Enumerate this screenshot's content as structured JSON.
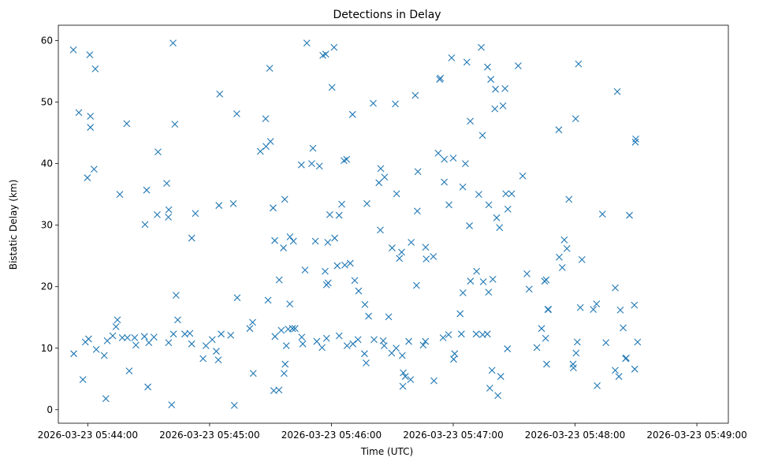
{
  "chart_data": {
    "type": "scatter",
    "title": "Detections in Delay",
    "xlabel": "Time (UTC)",
    "ylabel": "Bistatic Delay (km)",
    "marker": "x",
    "color": "#1f77b4",
    "x_unit": "seconds since 2026-03-23 05:43:00",
    "xlim": [
      45.5,
      375.5
    ],
    "ylim": [
      -2.2,
      62.5
    ],
    "xticks": [
      {
        "value": 60,
        "label": "2026-03-23 05:44:00"
      },
      {
        "value": 120,
        "label": "2026-03-23 05:45:00"
      },
      {
        "value": 180,
        "label": "2026-03-23 05:46:00"
      },
      {
        "value": 240,
        "label": "2026-03-23 05:47:00"
      },
      {
        "value": 300,
        "label": "2026-03-23 05:48:00"
      },
      {
        "value": 360,
        "label": "2026-03-23 05:49:00"
      }
    ],
    "yticks": [
      {
        "value": 0,
        "label": "0"
      },
      {
        "value": 10,
        "label": "10"
      },
      {
        "value": 20,
        "label": "20"
      },
      {
        "value": 30,
        "label": "30"
      },
      {
        "value": 40,
        "label": "40"
      },
      {
        "value": 50,
        "label": "50"
      },
      {
        "value": 60,
        "label": "60"
      }
    ],
    "series": [
      {
        "name": "Detections",
        "points": [
          [
            52.9,
            58.5
          ],
          [
            55.6,
            48.3
          ],
          [
            61.0,
            57.7
          ],
          [
            63.7,
            55.4
          ],
          [
            61.3,
            47.7
          ],
          [
            61.3,
            45.9
          ],
          [
            59.8,
            37.7
          ],
          [
            63.1,
            39.1
          ],
          [
            79.2,
            46.5
          ],
          [
            75.8,
            35.0
          ],
          [
            89.0,
            35.7
          ],
          [
            88.2,
            30.1
          ],
          [
            94.6,
            41.9
          ],
          [
            98.9,
            36.8
          ],
          [
            99.9,
            32.5
          ],
          [
            99.7,
            31.3
          ],
          [
            102.0,
            59.6
          ],
          [
            102.9,
            46.4
          ],
          [
            104.3,
            14.6
          ],
          [
            94.2,
            31.7
          ],
          [
            111.2,
            27.9
          ],
          [
            113.0,
            31.9
          ],
          [
            125.0,
            51.3
          ],
          [
            131.7,
            33.5
          ],
          [
            124.6,
            33.2
          ],
          [
            133.4,
            48.1
          ],
          [
            133.6,
            18.2
          ],
          [
            132.2,
            0.7
          ],
          [
            103.5,
            18.6
          ],
          [
            101.3,
            0.8
          ],
          [
            89.6,
            3.7
          ],
          [
            68.9,
            1.8
          ],
          [
            57.6,
            4.9
          ],
          [
            53.1,
            9.1
          ],
          [
            58.8,
            11.0
          ],
          [
            60.4,
            11.5
          ],
          [
            64.2,
            9.8
          ],
          [
            68.1,
            8.8
          ],
          [
            69.6,
            11.2
          ],
          [
            72.3,
            12.0
          ],
          [
            73.9,
            13.5
          ],
          [
            74.6,
            14.6
          ],
          [
            77.0,
            11.7
          ],
          [
            79.5,
            11.7
          ],
          [
            80.4,
            6.3
          ],
          [
            83.1,
            11.7
          ],
          [
            83.7,
            10.5
          ],
          [
            87.9,
            11.9
          ],
          [
            90.1,
            10.9
          ],
          [
            92.6,
            11.8
          ],
          [
            99.8,
            10.9
          ],
          [
            102.2,
            12.3
          ],
          [
            107.8,
            12.3
          ],
          [
            110.3,
            12.4
          ],
          [
            111.2,
            10.7
          ],
          [
            116.8,
            8.3
          ],
          [
            118.2,
            10.4
          ],
          [
            121.3,
            11.4
          ],
          [
            123.3,
            9.5
          ],
          [
            124.3,
            8.1
          ],
          [
            125.7,
            12.3
          ],
          [
            130.4,
            12.1
          ],
          [
            139.8,
            13.2
          ],
          [
            141.2,
            14.2
          ],
          [
            149.6,
            55.5
          ],
          [
            150.0,
            43.6
          ],
          [
            145.0,
            42.0
          ],
          [
            147.8,
            42.8
          ],
          [
            147.6,
            47.3
          ],
          [
            151.3,
            32.8
          ],
          [
            157.0,
            34.2
          ],
          [
            165.2,
            39.8
          ],
          [
            167.9,
            59.6
          ],
          [
            170.9,
            42.5
          ],
          [
            174.1,
            39.6
          ],
          [
            170.3,
            40.0
          ],
          [
            175.8,
            57.6
          ],
          [
            177.2,
            57.8
          ],
          [
            180.3,
            52.4
          ],
          [
            181.3,
            58.9
          ],
          [
            186.2,
            40.5
          ],
          [
            187.5,
            40.7
          ],
          [
            185.1,
            33.4
          ],
          [
            183.8,
            31.6
          ],
          [
            179.2,
            31.7
          ],
          [
            181.6,
            27.9
          ],
          [
            190.4,
            48.0
          ],
          [
            200.6,
            49.8
          ],
          [
            172.1,
            27.4
          ],
          [
            178.2,
            27.2
          ],
          [
            161.3,
            27.4
          ],
          [
            159.6,
            28.1
          ],
          [
            156.4,
            26.3
          ],
          [
            152.1,
            27.5
          ],
          [
            154.3,
            21.1
          ],
          [
            148.8,
            17.8
          ],
          [
            159.5,
            17.2
          ],
          [
            167.0,
            22.7
          ],
          [
            176.9,
            22.5
          ],
          [
            178.4,
            20.6
          ],
          [
            177.6,
            20.3
          ],
          [
            182.9,
            23.4
          ],
          [
            186.6,
            23.5
          ],
          [
            189.3,
            23.8
          ],
          [
            191.5,
            21.0
          ],
          [
            193.4,
            19.3
          ],
          [
            196.5,
            17.1
          ],
          [
            198.3,
            15.2
          ],
          [
            197.5,
            33.5
          ],
          [
            209.7,
            9.2
          ],
          [
            208.2,
            15.1
          ],
          [
            205.5,
            11.2
          ],
          [
            172.8,
            11.1
          ],
          [
            175.4,
            10.1
          ],
          [
            177.6,
            11.6
          ],
          [
            183.8,
            12.0
          ],
          [
            187.7,
            10.4
          ],
          [
            190.6,
            10.7
          ],
          [
            193.1,
            11.4
          ],
          [
            197.1,
            7.6
          ],
          [
            196.3,
            9.1
          ],
          [
            201.0,
            11.4
          ],
          [
            206.0,
            10.4
          ],
          [
            151.6,
            3.1
          ],
          [
            154.2,
            3.2
          ],
          [
            156.7,
            5.9
          ],
          [
            157.2,
            7.4
          ],
          [
            157.8,
            10.4
          ],
          [
            141.5,
            5.9
          ],
          [
            165.9,
            10.7
          ],
          [
            165.4,
            11.8
          ],
          [
            162.1,
            13.2
          ],
          [
            160.8,
            13.2
          ],
          [
            158.7,
            13.1
          ],
          [
            155.3,
            12.9
          ],
          [
            152.2,
            11.9
          ],
          [
            203.4,
            36.9
          ],
          [
            204.3,
            39.2
          ],
          [
            206.2,
            37.8
          ],
          [
            204.1,
            29.2
          ],
          [
            209.9,
            26.3
          ],
          [
            211.5,
            49.7
          ],
          [
            212.1,
            35.1
          ],
          [
            214.6,
            25.6
          ],
          [
            219.3,
            27.2
          ],
          [
            213.5,
            24.6
          ],
          [
            221.3,
            51.1
          ],
          [
            222.6,
            38.7
          ],
          [
            222.3,
            32.3
          ],
          [
            221.9,
            20.2
          ],
          [
            226.7,
            24.5
          ],
          [
            225.2,
            10.5
          ],
          [
            226.4,
            26.4
          ],
          [
            230.5,
            4.7
          ],
          [
            230.2,
            24.9
          ],
          [
            232.6,
            41.7
          ],
          [
            233.3,
            53.7
          ],
          [
            233.7,
            53.9
          ],
          [
            235.6,
            37.0
          ],
          [
            235.6,
            40.7
          ],
          [
            239.2,
            57.2
          ],
          [
            240.0,
            40.9
          ],
          [
            244.7,
            36.2
          ],
          [
            246.0,
            40.0
          ],
          [
            246.7,
            56.5
          ],
          [
            248.4,
            46.9
          ],
          [
            248.0,
            29.9
          ],
          [
            252.6,
            35.0
          ],
          [
            253.8,
            58.9
          ],
          [
            254.4,
            44.6
          ],
          [
            256.9,
            55.7
          ],
          [
            258.5,
            53.7
          ],
          [
            257.5,
            33.3
          ],
          [
            260.8,
            52.1
          ],
          [
            260.5,
            48.9
          ],
          [
            264.5,
            49.4
          ],
          [
            265.5,
            52.2
          ],
          [
            261.4,
            31.2
          ],
          [
            262.8,
            29.6
          ],
          [
            265.9,
            35.1
          ],
          [
            266.9,
            32.6
          ],
          [
            268.8,
            35.1
          ],
          [
            272.0,
            55.9
          ],
          [
            274.2,
            38.0
          ],
          [
            292.0,
            45.5
          ],
          [
            297.0,
            34.2
          ],
          [
            300.3,
            47.3
          ],
          [
            301.7,
            56.2
          ],
          [
            313.5,
            31.8
          ],
          [
            320.8,
            51.7
          ],
          [
            319.8,
            19.8
          ],
          [
            322.3,
            16.2
          ],
          [
            323.7,
            13.3
          ],
          [
            324.9,
            8.3
          ],
          [
            326.8,
            31.6
          ],
          [
            329.7,
            43.5
          ],
          [
            329.9,
            44.0
          ],
          [
            329.2,
            17.0
          ],
          [
            329.4,
            6.6
          ],
          [
            330.8,
            11.0
          ],
          [
            299.2,
            6.8
          ],
          [
            299.0,
            7.4
          ],
          [
            300.5,
            9.2
          ],
          [
            301.1,
            11.0
          ],
          [
            302.6,
            16.6
          ],
          [
            310.6,
            17.2
          ],
          [
            309.0,
            16.3
          ],
          [
            310.9,
            3.9
          ],
          [
            315.2,
            10.9
          ],
          [
            319.8,
            6.4
          ],
          [
            321.6,
            5.4
          ],
          [
            325.2,
            8.4
          ],
          [
            286.0,
            7.4
          ],
          [
            285.5,
            11.6
          ],
          [
            283.5,
            13.2
          ],
          [
            286.9,
            16.3
          ],
          [
            281.2,
            10.1
          ],
          [
            266.7,
            9.9
          ],
          [
            263.4,
            5.4
          ],
          [
            259.1,
            6.4
          ],
          [
            258.0,
            3.5
          ],
          [
            262.0,
            2.3
          ],
          [
            256.8,
            12.3
          ],
          [
            254.5,
            12.2
          ],
          [
            251.3,
            12.3
          ],
          [
            244.0,
            12.3
          ],
          [
            243.4,
            15.6
          ],
          [
            240.2,
            8.2
          ],
          [
            240.7,
            9.1
          ],
          [
            237.7,
            12.2
          ],
          [
            235.0,
            11.7
          ],
          [
            226.3,
            11.1
          ],
          [
            218.1,
            11.1
          ],
          [
            219.0,
            4.9
          ],
          [
            215.2,
            3.8
          ],
          [
            215.4,
            6.0
          ],
          [
            216.4,
            5.4
          ],
          [
            214.9,
            8.8
          ],
          [
            211.9,
            10.0
          ],
          [
            237.9,
            33.3
          ],
          [
            244.8,
            19.0
          ],
          [
            248.5,
            20.9
          ],
          [
            251.5,
            22.5
          ],
          [
            254.8,
            20.8
          ],
          [
            259.5,
            21.2
          ],
          [
            257.4,
            19.1
          ],
          [
            286.6,
            16.3
          ],
          [
            285.8,
            21.1
          ],
          [
            285.0,
            20.9
          ],
          [
            277.4,
            19.6
          ],
          [
            276.3,
            22.1
          ],
          [
            293.7,
            23.1
          ],
          [
            296.0,
            26.2
          ],
          [
            294.7,
            27.6
          ],
          [
            292.2,
            24.8
          ],
          [
            303.4,
            24.4
          ]
        ]
      }
    ]
  }
}
